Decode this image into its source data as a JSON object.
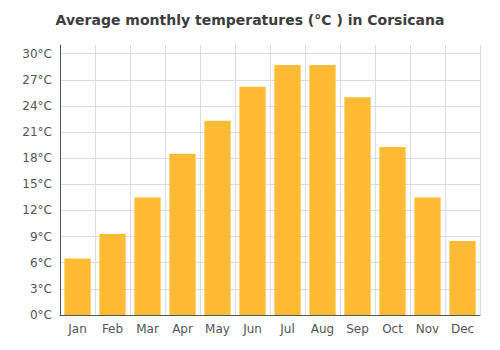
{
  "chart_data": {
    "type": "bar",
    "title": "Average monthly temperatures (°C ) in Corsicana",
    "categories": [
      "Jan",
      "Feb",
      "Mar",
      "Apr",
      "May",
      "Jun",
      "Jul",
      "Aug",
      "Sep",
      "Oct",
      "Nov",
      "Dec"
    ],
    "values": [
      6.5,
      9.3,
      13.5,
      18.5,
      22.3,
      26.2,
      28.7,
      28.7,
      25.0,
      19.3,
      13.5,
      8.5
    ],
    "color": "#FFBB33",
    "ylim": [
      0,
      31
    ],
    "yticks": [
      {
        "value": 0,
        "label": "0°C"
      },
      {
        "value": 3,
        "label": "3°C"
      },
      {
        "value": 6,
        "label": "6°C"
      },
      {
        "value": 9,
        "label": "9°C"
      },
      {
        "value": 12,
        "label": "12°C"
      },
      {
        "value": 15,
        "label": "15°C"
      },
      {
        "value": 18,
        "label": "18°C"
      },
      {
        "value": 21,
        "label": "21°C"
      },
      {
        "value": 24,
        "label": "24°C"
      },
      {
        "value": 27,
        "label": "27°C"
      },
      {
        "value": 30,
        "label": "30°C"
      }
    ],
    "grid": true
  }
}
